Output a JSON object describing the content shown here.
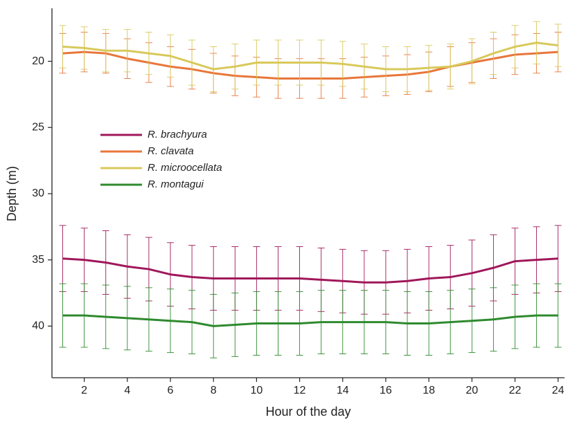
{
  "chart_data": {
    "type": "line",
    "x_label": "Hour of the day",
    "y_label": "Depth (m)",
    "x": [
      1,
      2,
      3,
      4,
      5,
      6,
      7,
      8,
      9,
      10,
      11,
      12,
      13,
      14,
      15,
      16,
      17,
      18,
      19,
      20,
      21,
      22,
      23,
      24
    ],
    "xlim": [
      0.5,
      24.3
    ],
    "xticks": [
      2,
      4,
      6,
      8,
      10,
      12,
      14,
      16,
      18,
      20,
      22,
      24
    ],
    "ylim": [
      16,
      43.9
    ],
    "yticks": [
      20,
      25,
      30,
      35,
      40
    ],
    "y_reversed": true,
    "legend": "upper-left",
    "series": [
      {
        "name": "R. brachyura",
        "color": "#a0175a",
        "values": [
          34.9,
          35.0,
          35.2,
          35.5,
          35.7,
          36.1,
          36.3,
          36.4,
          36.4,
          36.4,
          36.4,
          36.4,
          36.5,
          36.6,
          36.7,
          36.7,
          36.6,
          36.4,
          36.3,
          36.0,
          35.6,
          35.1,
          35.0,
          34.9
        ],
        "errors": [
          2.5,
          2.4,
          2.4,
          2.4,
          2.4,
          2.4,
          2.4,
          2.4,
          2.4,
          2.4,
          2.4,
          2.4,
          2.4,
          2.4,
          2.4,
          2.4,
          2.4,
          2.4,
          2.4,
          2.5,
          2.5,
          2.5,
          2.5,
          2.5
        ]
      },
      {
        "name": "R. clavata",
        "color": "#e8763a",
        "values": [
          19.4,
          19.3,
          19.4,
          19.8,
          20.1,
          20.4,
          20.6,
          20.9,
          21.1,
          21.2,
          21.3,
          21.3,
          21.3,
          21.3,
          21.2,
          21.1,
          21.0,
          20.8,
          20.4,
          20.1,
          19.8,
          19.5,
          19.4,
          19.3
        ],
        "errors": [
          1.5,
          1.5,
          1.5,
          1.5,
          1.5,
          1.5,
          1.5,
          1.5,
          1.5,
          1.5,
          1.5,
          1.5,
          1.5,
          1.5,
          1.5,
          1.5,
          1.5,
          1.5,
          1.5,
          1.5,
          1.5,
          1.5,
          1.5,
          1.5
        ]
      },
      {
        "name": "R. microocellata",
        "color": "#d8c95a",
        "values": [
          18.9,
          19.0,
          19.2,
          19.2,
          19.4,
          19.6,
          20.1,
          20.6,
          20.4,
          20.1,
          20.1,
          20.1,
          20.1,
          20.2,
          20.4,
          20.6,
          20.6,
          20.5,
          20.4,
          20.0,
          19.4,
          18.9,
          18.6,
          18.8
        ],
        "errors": [
          1.6,
          1.6,
          1.6,
          1.6,
          1.6,
          1.6,
          1.7,
          1.7,
          1.7,
          1.7,
          1.7,
          1.7,
          1.7,
          1.7,
          1.7,
          1.7,
          1.7,
          1.7,
          1.7,
          1.7,
          1.6,
          1.6,
          1.6,
          1.6
        ]
      },
      {
        "name": "R. montagui",
        "color": "#2e8a2e",
        "values": [
          39.2,
          39.2,
          39.3,
          39.4,
          39.5,
          39.6,
          39.7,
          40.0,
          39.9,
          39.8,
          39.8,
          39.8,
          39.7,
          39.7,
          39.7,
          39.7,
          39.8,
          39.8,
          39.7,
          39.6,
          39.5,
          39.3,
          39.2,
          39.2
        ],
        "errors": [
          2.4,
          2.4,
          2.4,
          2.4,
          2.4,
          2.4,
          2.4,
          2.4,
          2.4,
          2.4,
          2.4,
          2.4,
          2.4,
          2.4,
          2.4,
          2.4,
          2.4,
          2.4,
          2.4,
          2.4,
          2.4,
          2.4,
          2.4,
          2.4
        ]
      }
    ]
  }
}
